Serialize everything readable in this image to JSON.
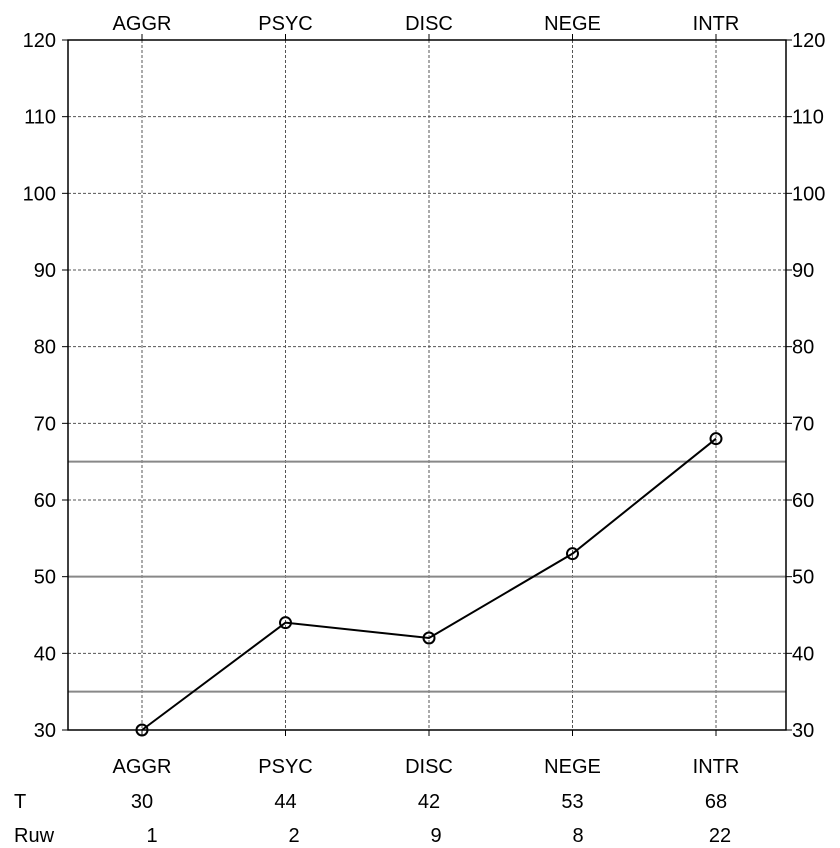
{
  "chart_data": {
    "type": "line",
    "categories": [
      "AGGR",
      "PSYC",
      "DISC",
      "NEGE",
      "INTR"
    ],
    "ylim": [
      30,
      120
    ],
    "yticks": [
      30,
      40,
      50,
      60,
      70,
      80,
      90,
      100,
      110,
      120
    ],
    "grid": true,
    "reference_lines": [
      35,
      50,
      65
    ],
    "series": [
      {
        "values": [
          30,
          44,
          42,
          53,
          68
        ]
      }
    ],
    "table": {
      "rows": [
        {
          "label": "T",
          "values": [
            "30",
            "44",
            "42",
            "53",
            "68"
          ]
        },
        {
          "label": "Ruw",
          "values": [
            "1",
            "2",
            "9",
            "8",
            "22"
          ]
        }
      ]
    },
    "colors": {
      "line": "#000000",
      "grid": "#555555",
      "reference": "#888888"
    }
  }
}
